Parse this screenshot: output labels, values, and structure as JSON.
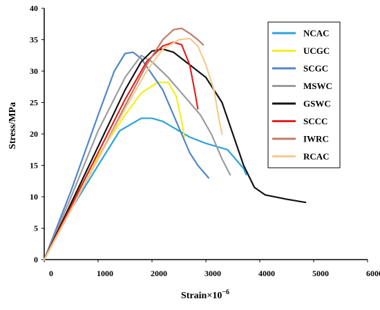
{
  "chart_data": {
    "type": "line",
    "title": "",
    "xlabel": "Strain×10",
    "xlabel_exponent": "−6",
    "ylabel": "Stress/MPa",
    "xlim": [
      0,
      6000
    ],
    "ylim": [
      0,
      40
    ],
    "xticks": [
      "0",
      "1000",
      "2000",
      "3000",
      "4000",
      "5000",
      "6000"
    ],
    "yticks": [
      "0",
      "5",
      "10",
      "15",
      "20",
      "25",
      "30",
      "35",
      "40"
    ],
    "grid": false,
    "legend_position": "right",
    "series": [
      {
        "name": "NCAC",
        "color": "#29a3dd",
        "points": [
          [
            0,
            0
          ],
          [
            500,
            8
          ],
          [
            1000,
            15
          ],
          [
            1400,
            20.5
          ],
          [
            1800,
            22.5
          ],
          [
            2000,
            22.5
          ],
          [
            2200,
            22
          ],
          [
            2400,
            21
          ],
          [
            2700,
            19.5
          ],
          [
            3000,
            18.5
          ],
          [
            3200,
            18
          ],
          [
            3400,
            17.5
          ],
          [
            3550,
            16
          ],
          [
            3700,
            14.5
          ],
          [
            3750,
            13.5
          ]
        ]
      },
      {
        "name": "UCGC",
        "color": "#f5ee1c",
        "points": [
          [
            0,
            0
          ],
          [
            500,
            9
          ],
          [
            1000,
            16.5
          ],
          [
            1500,
            23
          ],
          [
            1800,
            26.5
          ],
          [
            2100,
            28.2
          ],
          [
            2300,
            28.2
          ],
          [
            2450,
            26
          ],
          [
            2550,
            22
          ],
          [
            2600,
            19.5
          ]
        ]
      },
      {
        "name": "SCGC",
        "color": "#4f86c8",
        "points": [
          [
            0,
            0
          ],
          [
            500,
            11
          ],
          [
            1000,
            23
          ],
          [
            1300,
            30
          ],
          [
            1500,
            32.8
          ],
          [
            1650,
            33
          ],
          [
            1800,
            32
          ],
          [
            2000,
            29.5
          ],
          [
            2200,
            27
          ],
          [
            2400,
            23
          ],
          [
            2550,
            20
          ],
          [
            2700,
            17
          ],
          [
            2850,
            15
          ],
          [
            3000,
            13.5
          ],
          [
            3050,
            13
          ]
        ]
      },
      {
        "name": "MSWC",
        "color": "#9b9b9b",
        "points": [
          [
            0,
            0
          ],
          [
            500,
            10
          ],
          [
            1000,
            20.5
          ],
          [
            1500,
            29
          ],
          [
            1800,
            32.5
          ],
          [
            2000,
            31.5
          ],
          [
            2300,
            29
          ],
          [
            2600,
            26
          ],
          [
            2900,
            23
          ],
          [
            3100,
            20
          ],
          [
            3300,
            16
          ],
          [
            3450,
            13.5
          ]
        ]
      },
      {
        "name": "GSWC",
        "color": "#111111",
        "points": [
          [
            0,
            0
          ],
          [
            500,
            9
          ],
          [
            1000,
            18
          ],
          [
            1500,
            27
          ],
          [
            1800,
            31.5
          ],
          [
            2000,
            33.2
          ],
          [
            2200,
            33.5
          ],
          [
            2400,
            33
          ],
          [
            2700,
            31
          ],
          [
            3000,
            29
          ],
          [
            3300,
            25
          ],
          [
            3500,
            20
          ],
          [
            3700,
            15
          ],
          [
            3900,
            11.5
          ],
          [
            4100,
            10.3
          ],
          [
            4500,
            9.6
          ],
          [
            4850,
            9.1
          ]
        ]
      },
      {
        "name": "SCCC",
        "color": "#e5211c",
        "points": [
          [
            0,
            0
          ],
          [
            500,
            8.5
          ],
          [
            1000,
            17
          ],
          [
            1500,
            25.5
          ],
          [
            1900,
            31.5
          ],
          [
            2200,
            34
          ],
          [
            2400,
            34.6
          ],
          [
            2550,
            34.2
          ],
          [
            2700,
            31
          ],
          [
            2800,
            26.5
          ],
          [
            2850,
            24
          ]
        ]
      },
      {
        "name": "IWRC",
        "color": "#c17a68",
        "points": [
          [
            0,
            0
          ],
          [
            500,
            8
          ],
          [
            1000,
            16
          ],
          [
            1500,
            24.5
          ],
          [
            1900,
            31
          ],
          [
            2200,
            35
          ],
          [
            2400,
            36.6
          ],
          [
            2550,
            36.8
          ],
          [
            2700,
            36
          ],
          [
            2850,
            35
          ],
          [
            2950,
            34.2
          ]
        ]
      },
      {
        "name": "RCAC",
        "color": "#f7c98d",
        "points": [
          [
            0,
            0
          ],
          [
            500,
            8
          ],
          [
            1000,
            16
          ],
          [
            1500,
            24
          ],
          [
            1900,
            30
          ],
          [
            2200,
            33.5
          ],
          [
            2500,
            35
          ],
          [
            2700,
            35.2
          ],
          [
            2850,
            34
          ],
          [
            3000,
            31
          ],
          [
            3150,
            27
          ],
          [
            3250,
            22
          ],
          [
            3300,
            20
          ]
        ]
      }
    ]
  }
}
